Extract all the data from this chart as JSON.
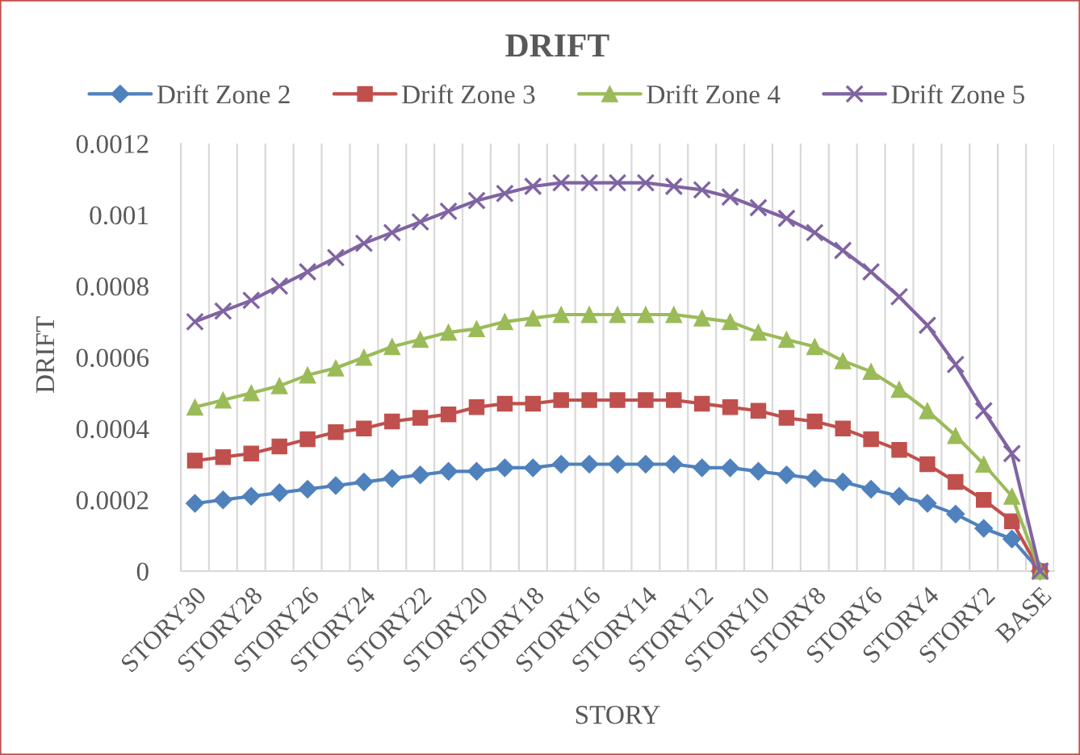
{
  "chart_data": {
    "type": "line",
    "title": "DRIFT",
    "xlabel": "STORY",
    "ylabel": "DRIFT",
    "categories": [
      "STORY30",
      null,
      "STORY28",
      null,
      "STORY26",
      null,
      "STORY24",
      null,
      "STORY22",
      null,
      "STORY20",
      null,
      "STORY18",
      null,
      "STORY16",
      null,
      "STORY14",
      null,
      "STORY12",
      null,
      "STORY10",
      null,
      "STORY8",
      null,
      "STORY6",
      null,
      "STORY4",
      null,
      "STORY2",
      null,
      "BASE"
    ],
    "ylim": [
      0,
      0.0012
    ],
    "yticks": [
      0,
      0.0002,
      0.0004,
      0.0006,
      0.0008,
      0.001,
      0.0012
    ],
    "grid": "x",
    "legend": "top",
    "line_style": "solid",
    "series": [
      {
        "name": "Drift Zone 2",
        "color": "#4f81bd",
        "marker": "diamond",
        "values": [
          0.00019,
          0.0002,
          0.00021,
          0.00022,
          0.00023,
          0.00024,
          0.00025,
          0.00026,
          0.00027,
          0.00028,
          0.00028,
          0.00029,
          0.00029,
          0.0003,
          0.0003,
          0.0003,
          0.0003,
          0.0003,
          0.00029,
          0.00029,
          0.00028,
          0.00027,
          0.00026,
          0.00025,
          0.00023,
          0.00021,
          0.00019,
          0.00016,
          0.00012,
          9e-05,
          0
        ]
      },
      {
        "name": "Drift Zone 3",
        "color": "#c0504d",
        "marker": "square",
        "values": [
          0.00031,
          0.00032,
          0.00033,
          0.00035,
          0.00037,
          0.00039,
          0.0004,
          0.00042,
          0.00043,
          0.00044,
          0.00046,
          0.00047,
          0.00047,
          0.00048,
          0.00048,
          0.00048,
          0.00048,
          0.00048,
          0.00047,
          0.00046,
          0.00045,
          0.00043,
          0.00042,
          0.0004,
          0.00037,
          0.00034,
          0.0003,
          0.00025,
          0.0002,
          0.00014,
          0
        ]
      },
      {
        "name": "Drift Zone 4",
        "color": "#9bbb59",
        "marker": "triangle",
        "values": [
          0.00046,
          0.00048,
          0.0005,
          0.00052,
          0.00055,
          0.00057,
          0.0006,
          0.00063,
          0.00065,
          0.00067,
          0.00068,
          0.0007,
          0.00071,
          0.00072,
          0.00072,
          0.00072,
          0.00072,
          0.00072,
          0.00071,
          0.0007,
          0.00067,
          0.00065,
          0.00063,
          0.00059,
          0.00056,
          0.00051,
          0.00045,
          0.00038,
          0.0003,
          0.00021,
          0
        ]
      },
      {
        "name": "Drift Zone 5",
        "color": "#8064a2",
        "marker": "cross",
        "values": [
          0.0007,
          0.00073,
          0.00076,
          0.0008,
          0.00084,
          0.00088,
          0.00092,
          0.00095,
          0.00098,
          0.00101,
          0.00104,
          0.00106,
          0.00108,
          0.00109,
          0.00109,
          0.00109,
          0.00109,
          0.00108,
          0.00107,
          0.00105,
          0.00102,
          0.00099,
          0.00095,
          0.0009,
          0.00084,
          0.00077,
          0.00069,
          0.00058,
          0.00045,
          0.00033,
          0
        ]
      }
    ]
  }
}
